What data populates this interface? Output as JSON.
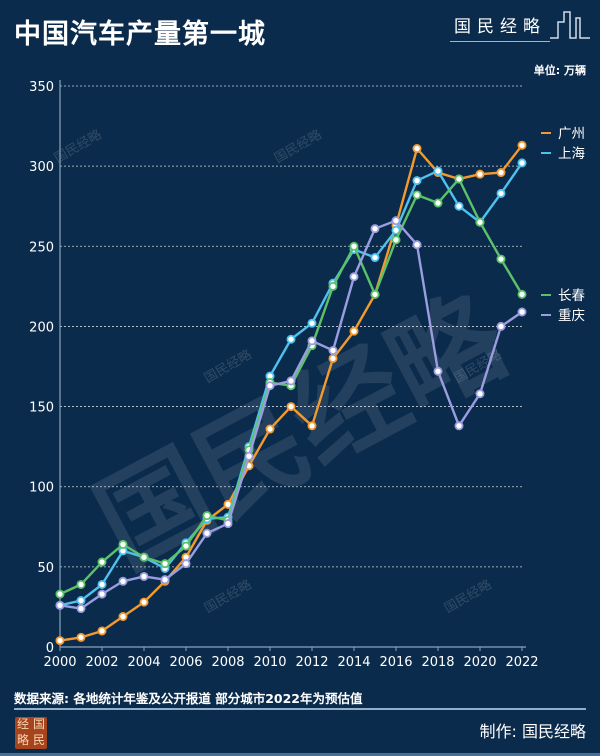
{
  "header": {
    "title": "中国汽车产量第一城",
    "brand": "国民经略",
    "unit": "单位: 万辆"
  },
  "footer": {
    "source": "数据来源: 各地统计年鉴及公开报道  部分城市2022年为预估值",
    "maker": "制作: 国民经略",
    "logo_text": "经国略民"
  },
  "watermark": "国民经略",
  "chart_data": {
    "type": "line",
    "title": "中国汽车产量第一城",
    "xlabel": "",
    "ylabel": "万辆",
    "ylim": [
      0,
      350
    ],
    "yticks": [
      "0",
      "50",
      "100",
      "150",
      "200",
      "250",
      "300",
      "350"
    ],
    "xticks": [
      "2000",
      "2002",
      "2004",
      "2006",
      "2008",
      "2010",
      "2012",
      "2014",
      "2016",
      "2018",
      "2020",
      "2022"
    ],
    "x": [
      2000,
      2001,
      2002,
      2003,
      2004,
      2005,
      2006,
      2007,
      2008,
      2009,
      2010,
      2011,
      2012,
      2013,
      2014,
      2015,
      2016,
      2017,
      2018,
      2019,
      2020,
      2021,
      2022
    ],
    "grid": "horizontal dashed",
    "legend": "right, next to line ends",
    "series": [
      {
        "name": "广州",
        "color": "#f39a2e",
        "values": [
          4,
          6,
          10,
          19,
          28,
          41,
          56,
          79,
          89,
          113,
          136,
          150,
          138,
          180,
          197,
          220,
          263,
          311,
          296,
          292,
          295,
          296,
          313
        ]
      },
      {
        "name": "上海",
        "color": "#4ec1ee",
        "values": [
          26,
          29,
          39,
          60,
          56,
          49,
          65,
          80,
          81,
          125,
          169,
          192,
          202,
          227,
          248,
          243,
          260,
          291,
          297,
          275,
          265,
          283,
          302
        ]
      },
      {
        "name": "长春",
        "color": "#5cc26a",
        "values": [
          33,
          39,
          53,
          64,
          56,
          52,
          63,
          82,
          79,
          123,
          165,
          163,
          188,
          225,
          250,
          220,
          254,
          282,
          277,
          292,
          265,
          242,
          220
        ]
      },
      {
        "name": "重庆",
        "color": "#9a9de0",
        "values": [
          26,
          24,
          33,
          41,
          44,
          42,
          52,
          71,
          77,
          119,
          163,
          166,
          191,
          185,
          231,
          261,
          266,
          251,
          172,
          138,
          158,
          200,
          209
        ]
      }
    ]
  }
}
